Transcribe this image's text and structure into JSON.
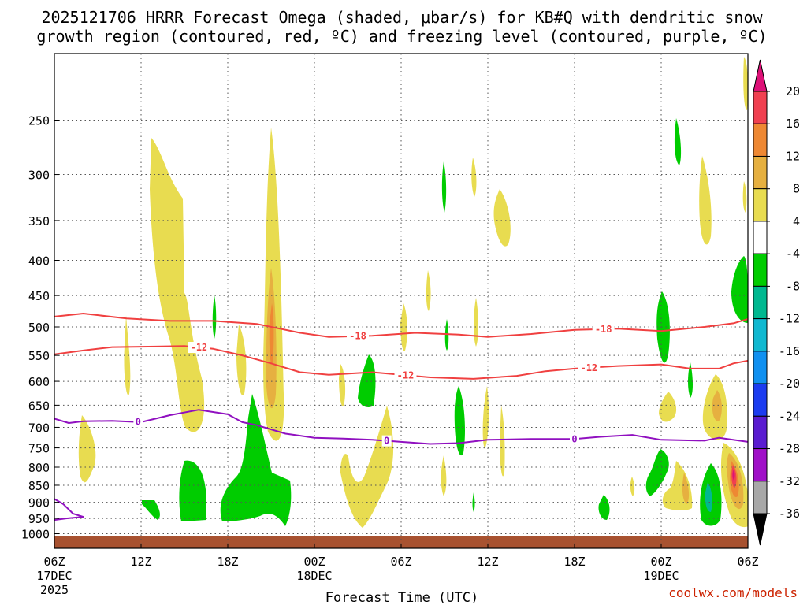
{
  "header": {
    "title_line1": "2025121706 HRRR Forecast Omega (shaded, μbar/s) for KB#Q with dendritic snow",
    "title_line2": "growth region (contoured, red, ºC) and freezing level (contoured, purple, ºC)"
  },
  "footer": {
    "xlabel": "Forecast Time (UTC)",
    "credit": "coolwx.com/models"
  },
  "chart_data": {
    "type": "time-height cross-section (filled contour)",
    "title": "2025121706 HRRR Forecast Omega (shaded, μbar/s) for KB#Q with dendritic snow growth region (contoured, red, ºC) and freezing level (contoured, purple, ºC)",
    "xlabel": "Forecast Time (UTC)",
    "ylabel": "",
    "x_range_hours": [
      0,
      48
    ],
    "y_range_hpa": [
      200,
      1050
    ],
    "y_scale": "log-pressure, inverted",
    "grid": true,
    "y_ticks": [
      250,
      300,
      350,
      400,
      450,
      500,
      550,
      600,
      650,
      700,
      750,
      800,
      850,
      900,
      950,
      1000
    ],
    "x_ticks": [
      {
        "h": 0,
        "time": "06Z",
        "day": "17DEC",
        "year": "2025"
      },
      {
        "h": 6,
        "time": "12Z",
        "day": "",
        "year": ""
      },
      {
        "h": 12,
        "time": "18Z",
        "day": "",
        "year": ""
      },
      {
        "h": 18,
        "time": "00Z",
        "day": "18DEC",
        "year": ""
      },
      {
        "h": 24,
        "time": "06Z",
        "day": "",
        "year": ""
      },
      {
        "h": 30,
        "time": "12Z",
        "day": "",
        "year": ""
      },
      {
        "h": 36,
        "time": "18Z",
        "day": "",
        "year": ""
      },
      {
        "h": 42,
        "time": "00Z",
        "day": "19DEC",
        "year": ""
      },
      {
        "h": 48,
        "time": "06Z",
        "day": "",
        "year": ""
      }
    ],
    "colorbar": {
      "unit": "μbar/s",
      "bins": [
        {
          "color": "#dd1177",
          "low": 20,
          "high": null
        },
        {
          "color": "#f04050",
          "low": 16,
          "high": 20
        },
        {
          "color": "#ee8833",
          "low": 12,
          "high": 16
        },
        {
          "color": "#e6b040",
          "low": 8,
          "high": 12
        },
        {
          "color": "#e8dc50",
          "low": 4,
          "high": 8
        },
        {
          "color": "#ffffff",
          "low": -4,
          "high": 4
        },
        {
          "color": "#00cc00",
          "low": -8,
          "high": -4
        },
        {
          "color": "#00b890",
          "low": -12,
          "high": -8
        },
        {
          "color": "#10b8d0",
          "low": -16,
          "high": -12
        },
        {
          "color": "#1090f0",
          "low": -20,
          "high": -16
        },
        {
          "color": "#1c3cf0",
          "low": -24,
          "high": -20
        },
        {
          "color": "#5a1cd0",
          "low": -28,
          "high": -24
        },
        {
          "color": "#a010c8",
          "low": -32,
          "high": -28
        },
        {
          "color": "#a8a8a8",
          "low": -36,
          "high": -32
        },
        {
          "color": "#000000",
          "low": null,
          "high": -36
        }
      ],
      "labels": [
        20,
        16,
        12,
        8,
        4,
        -4,
        -8,
        -12,
        -16,
        -20,
        -24,
        -28,
        -32,
        -36
      ]
    },
    "isotherms": [
      {
        "name": "-18",
        "color": "#f04040",
        "points": [
          [
            0,
            483
          ],
          [
            2,
            478
          ],
          [
            5,
            486
          ],
          [
            8,
            490
          ],
          [
            11,
            490
          ],
          [
            14,
            495
          ],
          [
            17,
            510
          ],
          [
            19,
            517
          ],
          [
            22,
            515
          ],
          [
            25,
            510
          ],
          [
            28,
            513
          ],
          [
            30,
            517
          ],
          [
            33,
            512
          ],
          [
            36,
            505
          ],
          [
            39,
            503
          ],
          [
            42,
            507
          ],
          [
            45,
            500
          ],
          [
            47,
            494
          ],
          [
            48,
            487
          ]
        ],
        "labels": [
          {
            "h": 21,
            "text": "-18"
          },
          {
            "h": 38,
            "text": "-18"
          }
        ]
      },
      {
        "name": "-12",
        "color": "#f04040",
        "points": [
          [
            0,
            548
          ],
          [
            2,
            541
          ],
          [
            4,
            535
          ],
          [
            7,
            534
          ],
          [
            9,
            533
          ],
          [
            11,
            538
          ],
          [
            13,
            550
          ],
          [
            15,
            565
          ],
          [
            17,
            582
          ],
          [
            19,
            587
          ],
          [
            22,
            582
          ],
          [
            24,
            587
          ],
          [
            26,
            592
          ],
          [
            29,
            595
          ],
          [
            32,
            589
          ],
          [
            34,
            580
          ],
          [
            36,
            575
          ],
          [
            39,
            570
          ],
          [
            42,
            567
          ],
          [
            44,
            575
          ],
          [
            46,
            575
          ],
          [
            47,
            565
          ],
          [
            48,
            560
          ]
        ],
        "labels": [
          {
            "h": 10,
            "text": "-12"
          },
          {
            "h": 24.3,
            "text": "-12"
          },
          {
            "h": 37,
            "text": "-12"
          }
        ]
      },
      {
        "name": "0",
        "color": "#9010c0",
        "points": [
          [
            0,
            680
          ],
          [
            1,
            690
          ],
          [
            2,
            686
          ],
          [
            4,
            685
          ],
          [
            6,
            688
          ],
          [
            8,
            672
          ],
          [
            10,
            660
          ],
          [
            12,
            670
          ],
          [
            13,
            688
          ],
          [
            14,
            695
          ],
          [
            16,
            715
          ],
          [
            18,
            725
          ],
          [
            20,
            727
          ],
          [
            22,
            730
          ],
          [
            24,
            735
          ],
          [
            26,
            740
          ],
          [
            28,
            738
          ],
          [
            30,
            730
          ],
          [
            33,
            728
          ],
          [
            36,
            728
          ],
          [
            38,
            722
          ],
          [
            40,
            718
          ],
          [
            42,
            730
          ],
          [
            45,
            732
          ],
          [
            46,
            725
          ],
          [
            48,
            735
          ]
        ],
        "labels": [
          {
            "h": 5.8,
            "text": "0"
          },
          {
            "h": 23,
            "text": "0"
          },
          {
            "h": 36,
            "text": "0"
          }
        ]
      },
      {
        "name": "0-surface",
        "color": "#9010c0",
        "points": [
          [
            0,
            890
          ],
          [
            0.6,
            905
          ],
          [
            1.3,
            935
          ],
          [
            2,
            945
          ],
          [
            0.8,
            950
          ],
          [
            0,
            955
          ]
        ],
        "labels": []
      }
    ]
  }
}
